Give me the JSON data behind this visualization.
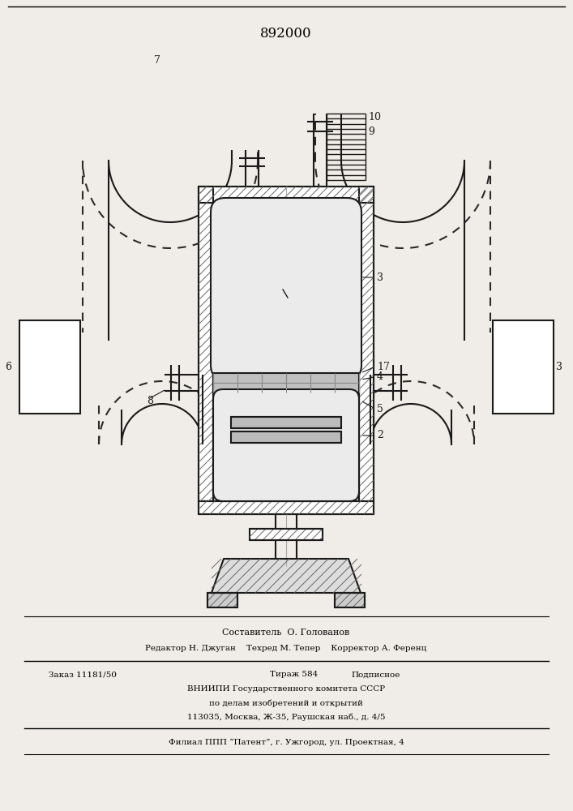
{
  "patent_number": "892000",
  "bg_color": "#f0ede8",
  "line_color": "#1a1a1a",
  "dashed_color": "#2a2a2a",
  "footer_lines": [
    "Составитель  О. Голованов",
    "Редактор Н. Джуган    Техред М. Тепер    Корректор А. Ференц",
    "Заказ 11181/50        Тираж 584          Подписное",
    "ВНИИПИ Государственного комитета СССР",
    "по делам изобретений и открытий",
    "113035, Москва, Ж-35, Раушская наб., д. 4/5",
    "Филиал ППП “Патент”, г. Ужгород, ул. Проектная, 4"
  ]
}
